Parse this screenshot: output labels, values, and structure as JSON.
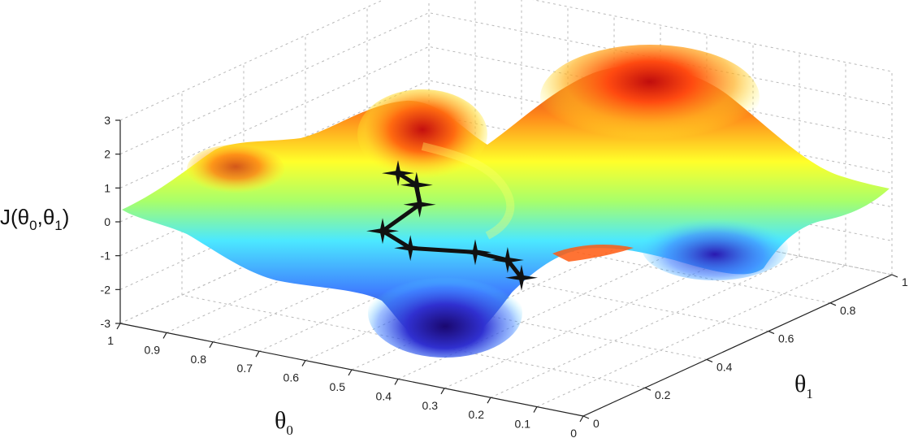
{
  "chart_data": {
    "type": "surface",
    "title": "",
    "xlabel": {
      "main": "θ",
      "sub": "0"
    },
    "ylabel": {
      "main": "θ",
      "sub": "1"
    },
    "zlabel": {
      "pre": "J(θ",
      "sub1": "0",
      "mid": ",θ",
      "sub2": "1",
      "post": ")"
    },
    "x_ticks": [
      "1",
      "0.9",
      "0.8",
      "0.7",
      "0.6",
      "0.5",
      "0.4",
      "0.3",
      "0.2",
      "0.1",
      "0"
    ],
    "y_ticks": [
      "0",
      "0.2",
      "0.4",
      "0.6",
      "0.8",
      "1"
    ],
    "z_ticks": [
      "-3",
      "-2",
      "-1",
      "0",
      "1",
      "2",
      "3"
    ],
    "xlim": [
      0,
      1
    ],
    "ylim": [
      0,
      1
    ],
    "zlim": [
      -3,
      3
    ],
    "grid": true,
    "colormap": [
      "#2a0a8c",
      "#3f7fff",
      "#4ce8ff",
      "#a8ff6a",
      "#ffff2a",
      "#ff8a1a",
      "#d41a1a"
    ],
    "descent_path": [
      {
        "theta0": 0.52,
        "theta1": 0.18,
        "J": 2.0
      },
      {
        "theta0": 0.52,
        "theta1": 0.24,
        "J": 1.4
      },
      {
        "theta0": 0.54,
        "theta1": 0.28,
        "J": 0.6
      },
      {
        "theta0": 0.62,
        "theta1": 0.28,
        "J": -0.4
      },
      {
        "theta0": 0.6,
        "theta1": 0.34,
        "J": -1.1
      },
      {
        "theta0": 0.5,
        "theta1": 0.4,
        "J": -1.2
      },
      {
        "theta0": 0.47,
        "theta1": 0.46,
        "J": -1.6
      },
      {
        "theta0": 0.48,
        "theta1": 0.52,
        "J": -2.4
      }
    ],
    "path_marker": "four-point-star",
    "path_color": "#111111"
  }
}
